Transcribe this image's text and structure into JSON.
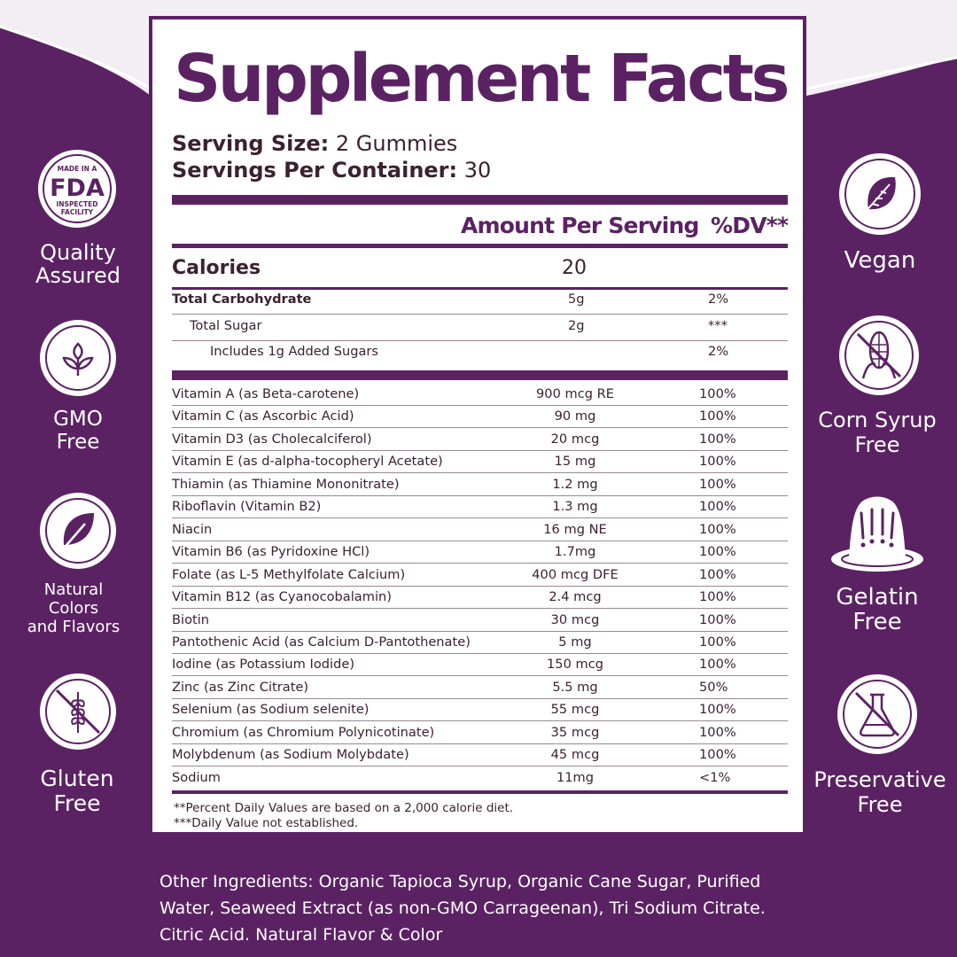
{
  "panel": {
    "title": "Supplement Facts",
    "serving_size_label": "Serving Size:",
    "serving_size_value": "2 Gummies",
    "servings_label": "Servings Per Container:",
    "servings_value": "30",
    "col_amount": "Amount Per Serving",
    "col_dv": "%DV**",
    "calories_label": "Calories",
    "calories_value": "20",
    "carb_rows": [
      {
        "name": "Total Carbohydrate",
        "amount": "5g",
        "dv": "2%"
      },
      {
        "name": "Total Sugar",
        "amount": "2g",
        "dv": "***"
      },
      {
        "name": "Includes 1g Added Sugars",
        "amount": "",
        "dv": "2%"
      }
    ],
    "nutrients": [
      {
        "name": "Vitamin A (as Beta-carotene)",
        "amount": "900 mcg RE",
        "dv": "100%"
      },
      {
        "name": "Vitamin C (as Ascorbic Acid)",
        "amount": "90 mg",
        "dv": "100%"
      },
      {
        "name": "Vitamin D3 (as Cholecalciferol)",
        "amount": "20 mcg",
        "dv": "100%"
      },
      {
        "name": "Vitamin E (as d-alpha-tocopheryl Acetate)",
        "amount": "15 mg",
        "dv": "100%"
      },
      {
        "name": "Thiamin (as Thiamine Mononitrate)",
        "amount": "1.2 mg",
        "dv": "100%"
      },
      {
        "name": "Riboflavin (Vitamin B2)",
        "amount": "1.3 mg",
        "dv": "100%"
      },
      {
        "name": "Niacin",
        "amount": "16 mg NE",
        "dv": "100%"
      },
      {
        "name": "Vitamin B6 (as Pyridoxine HCl)",
        "amount": "1.7mg",
        "dv": "100%"
      },
      {
        "name": "Folate (as L-5 Methylfolate Calcium)",
        "amount": "400 mcg DFE",
        "dv": "100%"
      },
      {
        "name": "Vitamin B12 (as Cyanocobalamin)",
        "amount": "2.4 mcg",
        "dv": "100%"
      },
      {
        "name": "Biotin",
        "amount": "30 mcg",
        "dv": "100%"
      },
      {
        "name": "Pantothenic Acid (as Calcium D-Pantothenate)",
        "amount": "5 mg",
        "dv": "100%"
      },
      {
        "name": "Iodine (as Potassium Iodide)",
        "amount": "150 mcg",
        "dv": "100%"
      },
      {
        "name": "Zinc (as Zinc Citrate)",
        "amount": "5.5 mg",
        "dv": "50%"
      },
      {
        "name": "Selenium (as Sodium selenite)",
        "amount": "55 mcg",
        "dv": "100%"
      },
      {
        "name": "Chromium (as Chromium Polynicotinate)",
        "amount": "35 mcg",
        "dv": "100%"
      },
      {
        "name": "Molybdenum (as Sodium Molybdate)",
        "amount": "45 mcg",
        "dv": "100%"
      },
      {
        "name": "Sodium",
        "amount": "11mg",
        "dv": "<1%"
      }
    ],
    "footnote_1": "**Percent Daily Values are based on a 2,000 calorie diet.",
    "footnote_2": "***Daily Value not established."
  },
  "badges_left": [
    {
      "icon": "fda-icon",
      "icon_line1": "MADE IN A",
      "icon_line2": "FDA",
      "icon_line3": "INSPECTED",
      "icon_line4": "FACILITY",
      "label_line1": "Quality",
      "label_line2": "Assured",
      "label_line3": ""
    },
    {
      "icon": "sprout-icon",
      "label_line1": "GMO",
      "label_line2": "Free",
      "label_line3": ""
    },
    {
      "icon": "leaf-icon",
      "label_line1": "Natural",
      "label_line2": "Colors",
      "label_line3": "and Flavors"
    },
    {
      "icon": "no-wheat-icon",
      "label_line1": "Gluten",
      "label_line2": "Free",
      "label_line3": ""
    }
  ],
  "badges_right": [
    {
      "icon": "vegan-leaf-icon",
      "label_line1": "Vegan",
      "label_line2": ""
    },
    {
      "icon": "no-corn-icon",
      "label_line1": "Corn Syrup",
      "label_line2": "Free"
    },
    {
      "icon": "gelatin-icon",
      "label_line1": "Gelatin",
      "label_line2": "Free"
    },
    {
      "icon": "no-flask-icon",
      "label_line1": "Preservative",
      "label_line2": "Free"
    }
  ],
  "other_ingredients": {
    "line1": "Other Ingredients: Organic Tapioca Syrup, Organic Cane Sugar, Purified",
    "line2": "Water, Seaweed Extract (as non-GMO Carrageenan), Tri Sodium Citrate.",
    "line3": "Citric Acid. Natural Flavor & Color"
  },
  "colors": {
    "brand_purple": "#5b2263",
    "text_dark": "#3a2230",
    "background_light": "#f3eef3"
  }
}
